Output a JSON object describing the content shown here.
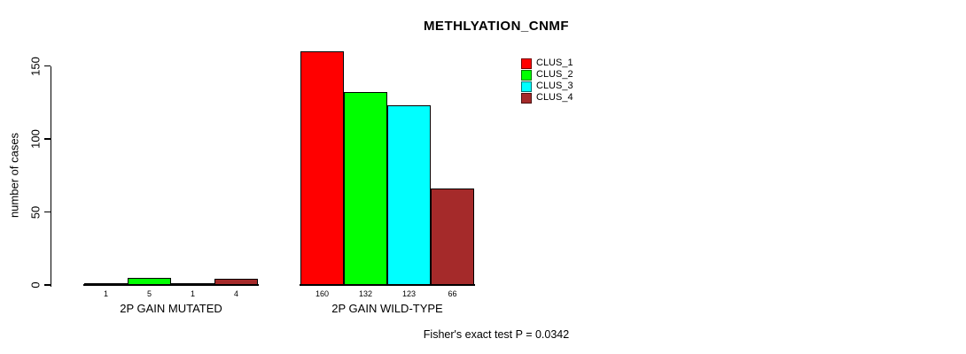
{
  "chart_data": {
    "type": "bar",
    "title": "METHLYATION_CNMF",
    "ylabel": "number of cases",
    "xlabel": "",
    "footer": "Fisher's exact test P = 0.0342",
    "categories": [
      "2P GAIN MUTATED",
      "2P GAIN WILD-TYPE"
    ],
    "series": [
      {
        "name": "CLUS_1",
        "color": "#ff0000",
        "values": [
          1,
          160
        ]
      },
      {
        "name": "CLUS_2",
        "color": "#00ff00",
        "values": [
          5,
          132
        ]
      },
      {
        "name": "CLUS_3",
        "color": "#00ffff",
        "values": [
          1,
          123
        ]
      },
      {
        "name": "CLUS_4",
        "color": "#a52a2a",
        "values": [
          4,
          66
        ]
      }
    ],
    "yticks": [
      0,
      50,
      100,
      150
    ],
    "ylim": [
      0,
      160
    ],
    "grid": false,
    "bar_value_labels": true,
    "legend_position": "top-right",
    "axis_color": "#000000",
    "background_color": "#ffffff"
  }
}
